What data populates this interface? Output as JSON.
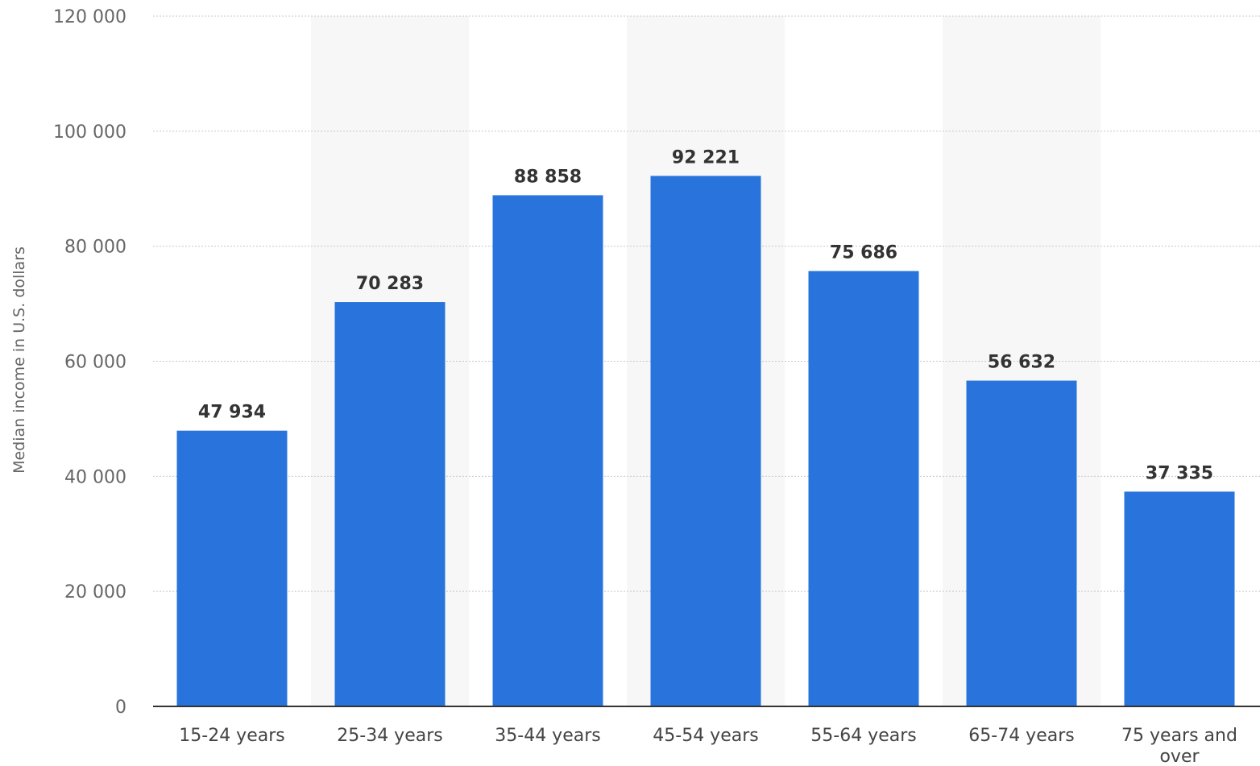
{
  "chart_data": {
    "type": "bar",
    "categories": [
      [
        "15-24 years"
      ],
      [
        "25-34 years"
      ],
      [
        "35-44 years"
      ],
      [
        "45-54 years"
      ],
      [
        "55-64 years"
      ],
      [
        "65-74 years"
      ],
      [
        "75 years and",
        "over"
      ]
    ],
    "values": [
      47934,
      70283,
      88858,
      92221,
      75686,
      56632,
      37335
    ],
    "data_labels": [
      "47 934",
      "70 283",
      "88 858",
      "92 221",
      "75 686",
      "56 632",
      "37 335"
    ],
    "ylabel": "Median income in U.S. dollars",
    "xlabel": "",
    "ylim": [
      0,
      120000
    ],
    "yticks": [
      0,
      20000,
      40000,
      60000,
      80000,
      100000,
      120000
    ],
    "ytick_labels": [
      "0",
      "20 000",
      "40 000",
      "60 000",
      "80 000",
      "100 000",
      "120 000"
    ],
    "grid": true,
    "bar_color": "#2874dc",
    "band_color": "#f7f7f7"
  }
}
